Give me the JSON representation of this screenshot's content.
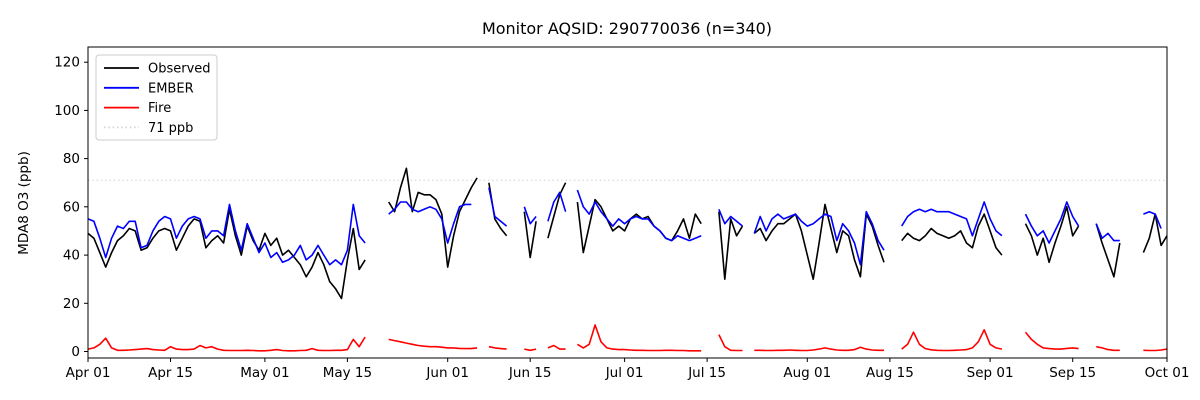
{
  "chart_data": {
    "type": "line",
    "title": "Monitor AQSID: 290770036 (n=340)",
    "ylabel": "MDA8 O3 (ppb)",
    "xlabel": "",
    "grid": false,
    "legend_position": "upper-left",
    "ylim": [
      -2.7,
      126.3
    ],
    "x_unit": "days since Apr 01",
    "x_range_days": [
      0,
      183
    ],
    "yticks": [
      0,
      20,
      40,
      60,
      80,
      100,
      120
    ],
    "xticks": [
      {
        "day": 0,
        "label": "Apr 01"
      },
      {
        "day": 14,
        "label": "Apr 15"
      },
      {
        "day": 30,
        "label": "May 01"
      },
      {
        "day": 44,
        "label": "May 15"
      },
      {
        "day": 61,
        "label": "Jun 01"
      },
      {
        "day": 75,
        "label": "Jun 15"
      },
      {
        "day": 91,
        "label": "Jul 01"
      },
      {
        "day": 105,
        "label": "Jul 15"
      },
      {
        "day": 122,
        "label": "Aug 01"
      },
      {
        "day": 136,
        "label": "Aug 15"
      },
      {
        "day": 153,
        "label": "Sep 01"
      },
      {
        "day": 167,
        "label": "Sep 15"
      },
      {
        "day": 183,
        "label": "Oct 01"
      }
    ],
    "threshold": {
      "label": "71 ppb",
      "value": 71,
      "color": "#d3d3d3",
      "style": "dotted"
    },
    "series": [
      {
        "name": "Observed",
        "color": "#000000",
        "style": "solid",
        "values": [
          49,
          47,
          41,
          35,
          41,
          46,
          48,
          51,
          50,
          42,
          43,
          47,
          50,
          51,
          50,
          42,
          47,
          52,
          55,
          54,
          43,
          46,
          48,
          45,
          59,
          48,
          40,
          52,
          46,
          42,
          49,
          44,
          47,
          40,
          42,
          39,
          36,
          31,
          35,
          41,
          36,
          29,
          26,
          22,
          38,
          51,
          34,
          38,
          null,
          null,
          null,
          62,
          58,
          68,
          76,
          58,
          66,
          65,
          65,
          63,
          57,
          35,
          48,
          58,
          63,
          68,
          72,
          null,
          70,
          55,
          51,
          48,
          null,
          null,
          58,
          39,
          54,
          null,
          47,
          56,
          65,
          70,
          null,
          62,
          41,
          52,
          63,
          60,
          55,
          50,
          52,
          50,
          55,
          57,
          55,
          56,
          52,
          50,
          47,
          46,
          50,
          55,
          47,
          57,
          53,
          null,
          null,
          58,
          30,
          55,
          48,
          52,
          null,
          49,
          51,
          46,
          50,
          53,
          53,
          55,
          57,
          50,
          40,
          30,
          45,
          61,
          51,
          41,
          50,
          48,
          38,
          31,
          57,
          52,
          44,
          37,
          null,
          null,
          46,
          49,
          47,
          46,
          48,
          51,
          49,
          48,
          47,
          48,
          50,
          45,
          43,
          52,
          57,
          50,
          43,
          40,
          null,
          null,
          null,
          53,
          48,
          40,
          47,
          37,
          45,
          52,
          60,
          48,
          52,
          null,
          null,
          53,
          45,
          38,
          31,
          45,
          null,
          null,
          null,
          41,
          47,
          57,
          44,
          48
        ]
      },
      {
        "name": "EMBER",
        "color": "#0000ff",
        "style": "solid",
        "values": [
          55,
          54,
          47,
          39,
          47,
          52,
          51,
          54,
          54,
          43,
          44,
          50,
          54,
          56,
          55,
          47,
          52,
          55,
          56,
          55,
          47,
          50,
          50,
          48,
          61,
          50,
          42,
          53,
          47,
          41,
          45,
          39,
          41,
          37,
          38,
          40,
          44,
          38,
          40,
          44,
          40,
          36,
          38,
          36,
          42,
          61,
          48,
          45,
          null,
          null,
          null,
          57,
          59,
          62,
          62,
          59,
          58,
          59,
          60,
          59,
          55,
          45,
          53,
          60,
          61,
          61,
          null,
          null,
          68,
          56,
          54,
          52,
          null,
          null,
          60,
          53,
          56,
          null,
          54,
          62,
          66,
          58,
          null,
          67,
          60,
          57,
          62,
          58,
          55,
          52,
          55,
          53,
          55,
          56,
          55,
          55,
          52,
          50,
          47,
          46,
          48,
          47,
          46,
          47,
          48,
          null,
          null,
          59,
          53,
          56,
          54,
          52,
          null,
          49,
          56,
          50,
          55,
          57,
          55,
          56,
          57,
          54,
          52,
          53,
          55,
          57,
          56,
          46,
          53,
          50,
          45,
          36,
          58,
          53,
          46,
          42,
          null,
          null,
          52,
          56,
          58,
          59,
          58,
          59,
          58,
          58,
          58,
          57,
          56,
          55,
          48,
          55,
          62,
          55,
          50,
          48,
          null,
          null,
          null,
          57,
          52,
          48,
          50,
          45,
          50,
          55,
          62,
          56,
          52,
          null,
          null,
          53,
          47,
          49,
          46,
          46,
          null,
          null,
          null,
          57,
          58,
          57,
          51,
          null
        ]
      },
      {
        "name": "Fire",
        "color": "#ff0000",
        "style": "solid",
        "values": [
          1,
          1.5,
          3,
          5.5,
          1.5,
          0.5,
          0.5,
          0.6,
          0.8,
          1,
          1.2,
          0.8,
          0.6,
          0.5,
          2,
          1,
          0.8,
          0.8,
          1,
          2.5,
          1.5,
          2,
          1,
          0.5,
          0.4,
          0.4,
          0.4,
          0.5,
          0.4,
          0.3,
          0.3,
          0.5,
          0.8,
          0.4,
          0.3,
          0.3,
          0.4,
          0.5,
          1.2,
          0.5,
          0.4,
          0.4,
          0.5,
          0.5,
          0.8,
          5,
          2,
          6,
          null,
          null,
          null,
          5,
          4.5,
          4,
          3.5,
          3,
          2.5,
          2.2,
          2,
          2,
          1.8,
          1.5,
          1.5,
          1.3,
          1.2,
          1.2,
          1.5,
          null,
          2,
          1.5,
          1.2,
          1,
          null,
          null,
          1,
          0.5,
          1,
          null,
          1.5,
          2.5,
          1,
          1,
          null,
          3,
          1.5,
          3,
          11,
          4,
          1.5,
          1,
          0.8,
          0.8,
          0.6,
          0.5,
          0.5,
          0.4,
          0.4,
          0.4,
          0.5,
          0.5,
          0.4,
          0.4,
          0.3,
          0.3,
          0.3,
          null,
          null,
          7,
          2,
          0.5,
          0.4,
          0.4,
          null,
          0.5,
          0.5,
          0.4,
          0.4,
          0.5,
          0.5,
          0.6,
          0.5,
          0.4,
          0.4,
          0.6,
          1,
          1.5,
          1,
          0.6,
          0.5,
          0.5,
          0.8,
          1.8,
          1,
          0.6,
          0.5,
          0.5,
          null,
          null,
          1,
          3,
          8,
          3,
          1.2,
          0.7,
          0.5,
          0.4,
          0.4,
          0.5,
          0.6,
          0.8,
          1.5,
          4,
          9,
          3,
          1.5,
          1,
          null,
          null,
          null,
          8,
          5,
          3,
          1.5,
          1.2,
          1,
          1,
          1.3,
          1.5,
          1.2,
          null,
          null,
          2,
          1.5,
          0.8,
          0.5,
          0.5,
          null,
          null,
          null,
          0.5,
          0.4,
          0.4,
          0.6,
          1
        ]
      }
    ]
  },
  "legend": {
    "items": [
      {
        "label": "Observed",
        "color": "#000000",
        "dash": "solid"
      },
      {
        "label": "EMBER",
        "color": "#0000ff",
        "dash": "solid"
      },
      {
        "label": "Fire",
        "color": "#ff0000",
        "dash": "solid"
      },
      {
        "label": "71 ppb",
        "color": "#d3d3d3",
        "dash": "dotted"
      }
    ]
  }
}
